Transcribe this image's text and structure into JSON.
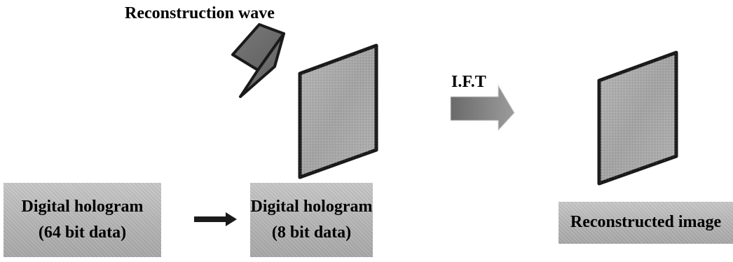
{
  "diagram": {
    "reconstruction_wave_label": "Reconstruction wave",
    "ift_label": "I.F.T",
    "boxes": {
      "hologram_64": {
        "line1": "Digital hologram",
        "line2": "(64 bit data)"
      },
      "hologram_8": {
        "line1": "Digital hologram",
        "line2": "(8 bit data)"
      },
      "reconstructed": {
        "line1": "Reconstructed image"
      }
    },
    "colors": {
      "stroke": "#1a1a1a",
      "plate_fill": "#a6a6a6",
      "label_box_fill": "#b8b8b8",
      "wave_fill": "#6e6e6e",
      "arrow_fill": "#808080"
    }
  }
}
